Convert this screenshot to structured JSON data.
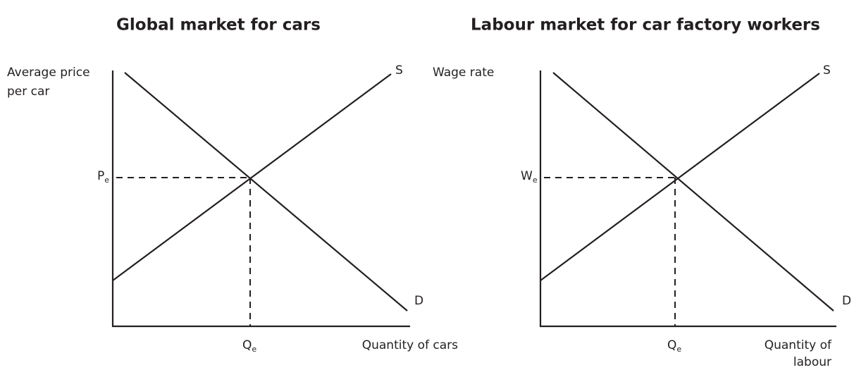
{
  "panels": [
    {
      "title": "Global market for cars",
      "y_axis_label": [
        "Average price",
        "per car"
      ],
      "x_axis_label": [
        "Quantity of cars"
      ],
      "price_label": {
        "symbol": "P",
        "subscript": "e"
      },
      "quantity_label": {
        "symbol": "Q",
        "subscript": "e"
      },
      "supply_label": "S",
      "demand_label": "D"
    },
    {
      "title": "Labour market for car factory workers",
      "y_axis_label": [
        "Wage rate"
      ],
      "x_axis_label": [
        "Quantity of",
        "labour"
      ],
      "price_label": {
        "symbol": "W",
        "subscript": "e"
      },
      "quantity_label": {
        "symbol": "Q",
        "subscript": "e"
      },
      "supply_label": "S",
      "demand_label": "D"
    }
  ]
}
